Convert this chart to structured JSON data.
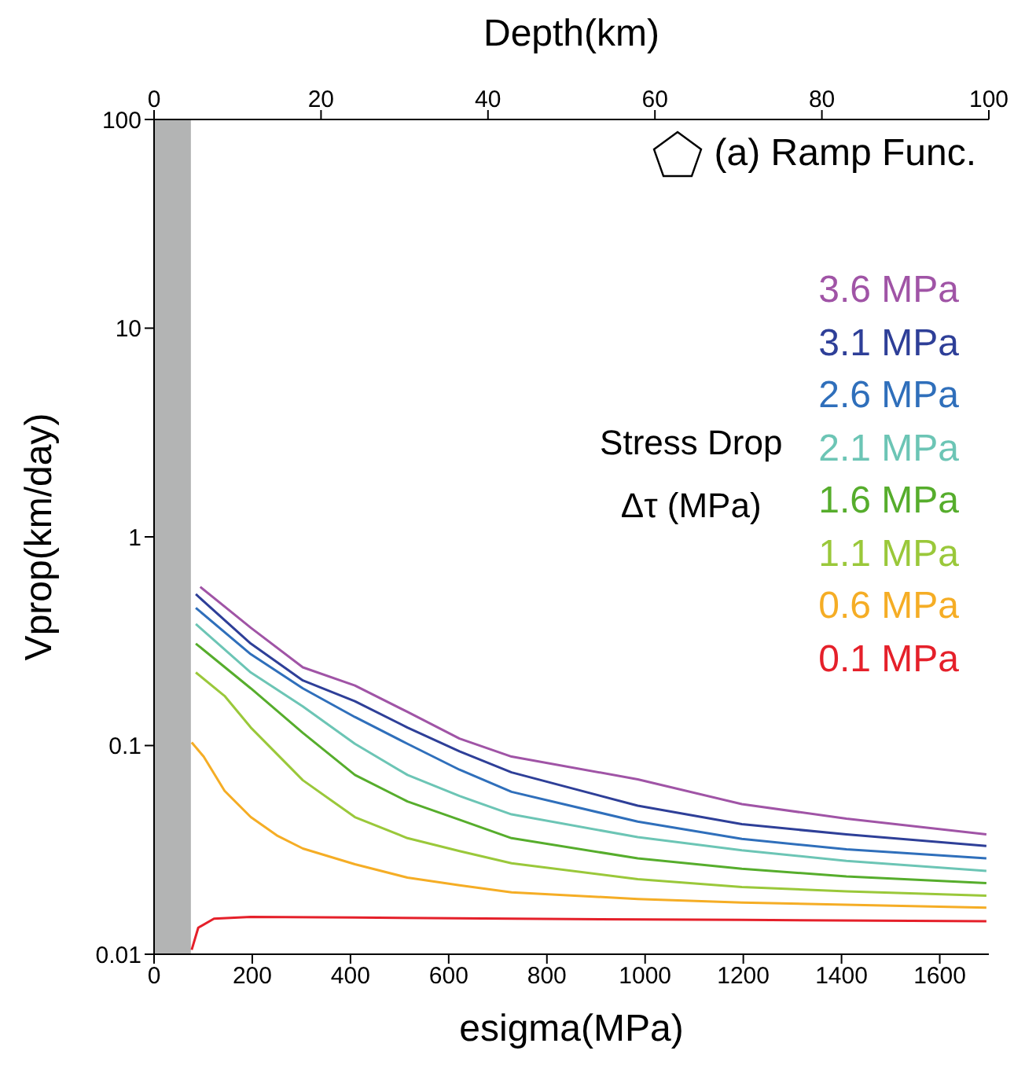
{
  "chart_data": {
    "type": "line",
    "title": "(a) Ramp Func.",
    "xlabel": "esigma(MPa)",
    "ylabel": "Vprop(km/day)",
    "x2label": "Depth(km)",
    "legend_title": "Stress Drop Δτ (MPa)",
    "legend": "right",
    "log": "y",
    "grid": false,
    "xlim": [
      0,
      1700
    ],
    "xticks": [
      0,
      200,
      400,
      600,
      800,
      1000,
      1200,
      1400,
      1600
    ],
    "x2lim": [
      0,
      100
    ],
    "x2ticks": [
      0,
      20,
      40,
      60,
      80,
      100
    ],
    "ylim": [
      0.01,
      100
    ],
    "yticks": [
      0.01,
      0.1,
      1,
      10,
      100
    ],
    "bands": [
      {
        "axis": "x",
        "from": 0,
        "to": 75,
        "color": "#b3b4b4"
      }
    ],
    "series": [
      {
        "name": "3.6 MPa",
        "color": "#a054a6",
        "x": [
          94,
          197,
          303,
          409,
          516,
          622,
          728,
          985,
          1197,
          1410,
          1695
        ],
        "values": [
          0.576,
          0.367,
          0.237,
          0.194,
          0.145,
          0.108,
          0.0885,
          0.0689,
          0.0524,
          0.0446,
          0.0375
        ]
      },
      {
        "name": "3.1 MPa",
        "color": "#2e3f98",
        "x": [
          85,
          197,
          303,
          409,
          516,
          622,
          728,
          985,
          1197,
          1410,
          1695
        ],
        "values": [
          0.531,
          0.308,
          0.205,
          0.163,
          0.122,
          0.0938,
          0.0744,
          0.0515,
          0.042,
          0.0375,
          0.033
        ]
      },
      {
        "name": "2.6 MPa",
        "color": "#2f6fbb",
        "x": [
          85,
          197,
          303,
          409,
          516,
          622,
          728,
          985,
          1197,
          1410,
          1695
        ],
        "values": [
          0.457,
          0.274,
          0.188,
          0.137,
          0.102,
          0.0766,
          0.06,
          0.0432,
          0.0357,
          0.0318,
          0.0288
        ]
      },
      {
        "name": "2.1 MPa",
        "color": "#6cc5b5",
        "x": [
          85,
          197,
          303,
          409,
          516,
          622,
          728,
          985,
          1197,
          1410,
          1695
        ],
        "values": [
          0.382,
          0.224,
          0.154,
          0.102,
          0.0723,
          0.0573,
          0.0468,
          0.0364,
          0.0315,
          0.028,
          0.0251
        ]
      },
      {
        "name": "1.6 MPa",
        "color": "#56ad2c",
        "x": [
          85,
          197,
          303,
          409,
          516,
          622,
          728,
          985,
          1197,
          1410,
          1695
        ],
        "values": [
          0.308,
          0.188,
          0.115,
          0.0723,
          0.054,
          0.0441,
          0.036,
          0.0288,
          0.0257,
          0.0236,
          0.0219
        ]
      },
      {
        "name": "1.1 MPa",
        "color": "#9ac83a",
        "x": [
          85,
          143.5,
          197,
          303,
          409,
          516,
          622,
          728,
          985,
          1197,
          1410,
          1695
        ],
        "values": [
          0.224,
          0.173,
          0.122,
          0.0682,
          0.0454,
          0.036,
          0.0312,
          0.0273,
          0.0229,
          0.021,
          0.02,
          0.0191
        ]
      },
      {
        "name": "0.6 MPa",
        "color": "#f5ad25",
        "x": [
          76.6,
          101,
          143.5,
          197,
          250,
          303,
          409,
          516,
          622,
          728,
          985,
          1197,
          1695
        ],
        "values": [
          0.1035,
          0.0885,
          0.0607,
          0.0454,
          0.0371,
          0.0321,
          0.027,
          0.0233,
          0.0214,
          0.0198,
          0.0184,
          0.0177,
          0.0167
        ]
      },
      {
        "name": "0.1 MPa",
        "color": "#e5202a",
        "x": [
          76.6,
          90,
          122,
          197,
          409,
          728,
          1197,
          1695
        ],
        "values": [
          0.0105,
          0.0134,
          0.0148,
          0.0151,
          0.015,
          0.0148,
          0.0146,
          0.0144
        ]
      }
    ]
  }
}
